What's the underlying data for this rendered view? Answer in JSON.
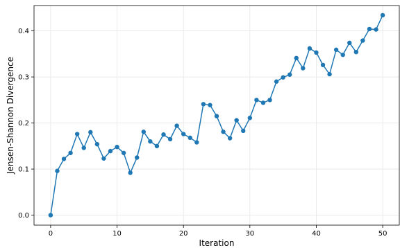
{
  "chart_data": {
    "type": "line",
    "title": "",
    "xlabel": "Iteration",
    "ylabel": "Jensen-Shannon Divergence",
    "xlim": [
      -2.5,
      52.5
    ],
    "ylim": [
      -0.0217,
      0.455
    ],
    "grid": true,
    "legend": "none",
    "x_ticks": [
      0,
      10,
      20,
      30,
      40,
      50
    ],
    "y_ticks": [
      0.0,
      0.1,
      0.2,
      0.3,
      0.4
    ],
    "x_tick_labels": [
      "0",
      "10",
      "20",
      "30",
      "40",
      "50"
    ],
    "y_tick_labels": [
      "0.0",
      "0.1",
      "0.2",
      "0.3",
      "0.4"
    ],
    "series": [
      {
        "color": "#1f77b4",
        "marker": "circle",
        "x": [
          0,
          1,
          2,
          3,
          4,
          5,
          6,
          7,
          8,
          9,
          10,
          11,
          12,
          13,
          14,
          15,
          16,
          17,
          18,
          19,
          20,
          21,
          22,
          23,
          24,
          25,
          26,
          27,
          28,
          29,
          30,
          31,
          32,
          33,
          34,
          35,
          36,
          37,
          38,
          39,
          40,
          41,
          42,
          43,
          44,
          45,
          46,
          47,
          48,
          49,
          50
        ],
        "values": [
          0.0,
          0.096,
          0.122,
          0.135,
          0.176,
          0.146,
          0.18,
          0.154,
          0.123,
          0.139,
          0.148,
          0.135,
          0.092,
          0.125,
          0.181,
          0.16,
          0.15,
          0.175,
          0.165,
          0.194,
          0.176,
          0.168,
          0.158,
          0.241,
          0.239,
          0.215,
          0.181,
          0.167,
          0.206,
          0.183,
          0.211,
          0.25,
          0.244,
          0.25,
          0.29,
          0.299,
          0.305,
          0.341,
          0.319,
          0.362,
          0.353,
          0.326,
          0.306,
          0.359,
          0.348,
          0.374,
          0.354,
          0.379,
          0.404,
          0.403,
          0.434
        ]
      }
    ]
  }
}
